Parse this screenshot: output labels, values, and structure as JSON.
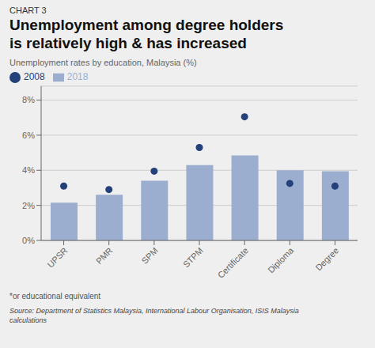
{
  "chart_data": {
    "type": "bar",
    "chart_label": "CHART 3",
    "title": "Unemployment among degree holders\nis relatively high & has increased",
    "subtitle": "Unemployment rates by education, Malaysia (%)",
    "categories": [
      "UPSR",
      "PMR",
      "SPM",
      "STPM",
      "Certificate",
      "Diploma",
      "Degree"
    ],
    "series": [
      {
        "name": "2018",
        "type": "bar",
        "color": "#9BAED0",
        "values": [
          2.15,
          2.6,
          3.4,
          4.3,
          4.85,
          4.0,
          3.95
        ]
      },
      {
        "name": "2008",
        "type": "scatter",
        "color": "#24417a",
        "marker": "circle",
        "values": [
          3.1,
          2.9,
          3.95,
          5.3,
          7.05,
          3.25,
          3.1
        ]
      }
    ],
    "ylim": [
      0,
      8.8
    ],
    "yticks": [
      {
        "value": 0,
        "label": "0%"
      },
      {
        "value": 2,
        "label": "2%"
      },
      {
        "value": 4,
        "label": "4%"
      },
      {
        "value": 6,
        "label": "6%"
      },
      {
        "value": 8,
        "label": "8%"
      }
    ],
    "grid": true,
    "legend": "upper left",
    "footnote": "*or educational equivalent",
    "source": "Source: Department of Statistics Malaysia, International Labour Organisation, ISIS Malaysia\ncalculations"
  }
}
